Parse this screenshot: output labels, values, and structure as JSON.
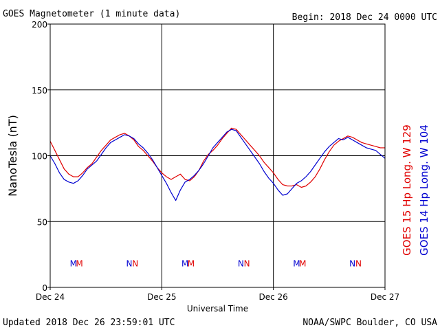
{
  "header": {
    "title": "GOES Magnetometer (1 minute data)",
    "begin": "Begin:  2018 Dec 24 0000 UTC"
  },
  "footer": {
    "updated": "Updated 2018 Dec 26 23:59:01 UTC",
    "credit": "NOAA/SWPC Boulder, CO USA"
  },
  "colors": {
    "goes15": "#e00000",
    "goes14": "#0000d0",
    "grid": "#000000"
  },
  "chart_data": {
    "type": "line",
    "title": "GOES Magnetometer (1 minute data)",
    "xlabel": "Universal Time",
    "ylabel": "NanoTesla (nT)",
    "xlim_hours": [
      0,
      72
    ],
    "ylim": [
      0,
      200
    ],
    "yticks": [
      "0",
      "50",
      "100",
      "150",
      "200"
    ],
    "xticks": [
      {
        "hour": 0,
        "label": "Dec 24"
      },
      {
        "hour": 24,
        "label": "Dec 25"
      },
      {
        "hour": 48,
        "label": "Dec 26"
      },
      {
        "hour": 72,
        "label": "Dec 27"
      }
    ],
    "grid": true,
    "series": [
      {
        "name": "GOES 15 Hp  Long. W 129",
        "color": "#e00000",
        "x_hours": [
          0,
          1,
          2,
          3,
          4,
          5,
          6,
          7,
          8,
          9,
          10,
          11,
          12,
          13,
          14,
          15,
          16,
          17,
          18,
          19,
          20,
          21,
          22,
          23,
          24,
          25,
          26,
          27,
          28,
          29,
          30,
          31,
          32,
          33,
          34,
          35,
          36,
          37,
          38,
          39,
          40,
          41,
          42,
          43,
          44,
          45,
          46,
          47,
          48,
          49,
          50,
          51,
          52,
          53,
          54,
          55,
          56,
          57,
          58,
          59,
          60,
          61,
          62,
          63,
          64,
          65,
          66,
          67,
          68,
          69,
          70,
          71,
          72
        ],
        "values": [
          111,
          104,
          97,
          90,
          86,
          84,
          84,
          87,
          91,
          94,
          99,
          104,
          108,
          112,
          114,
          116,
          117,
          115,
          112,
          107,
          104,
          100,
          96,
          91,
          87,
          84,
          82,
          84,
          86,
          82,
          81,
          84,
          89,
          96,
          101,
          104,
          108,
          113,
          117,
          121,
          120,
          116,
          112,
          108,
          104,
          100,
          95,
          91,
          87,
          82,
          78,
          77,
          77,
          78,
          76,
          77,
          80,
          84,
          90,
          97,
          103,
          108,
          111,
          113,
          115,
          114,
          112,
          110,
          109,
          108,
          107,
          106,
          106
        ]
      },
      {
        "name": "GOES 14 Hp  Long. W 104",
        "color": "#0000d0",
        "x_hours": [
          0,
          1,
          2,
          3,
          4,
          5,
          6,
          7,
          8,
          9,
          10,
          11,
          12,
          13,
          14,
          15,
          16,
          17,
          18,
          19,
          20,
          21,
          22,
          23,
          24,
          25,
          26,
          27,
          28,
          29,
          30,
          31,
          32,
          33,
          34,
          35,
          36,
          37,
          38,
          39,
          40,
          41,
          42,
          43,
          44,
          45,
          46,
          47,
          48,
          49,
          50,
          51,
          52,
          53,
          54,
          55,
          56,
          57,
          58,
          59,
          60,
          61,
          62,
          63,
          64,
          65,
          66,
          67,
          68,
          69,
          70,
          71,
          72
        ],
        "values": [
          100,
          94,
          87,
          82,
          80,
          79,
          81,
          85,
          90,
          93,
          96,
          101,
          106,
          110,
          112,
          114,
          116,
          115,
          113,
          109,
          106,
          102,
          97,
          91,
          85,
          79,
          72,
          66,
          74,
          80,
          82,
          85,
          89,
          94,
          100,
          106,
          110,
          114,
          118,
          120,
          119,
          114,
          109,
          104,
          99,
          94,
          88,
          83,
          79,
          74,
          70,
          71,
          75,
          79,
          81,
          84,
          88,
          93,
          98,
          103,
          107,
          110,
          113,
          112,
          114,
          112,
          110,
          108,
          106,
          105,
          104,
          101,
          98
        ]
      }
    ],
    "markers": [
      {
        "hour": 5.0,
        "text": "M",
        "series": 1
      },
      {
        "hour": 6.3,
        "text": "M",
        "series": 0
      },
      {
        "hour": 17.0,
        "text": "N",
        "series": 1
      },
      {
        "hour": 18.3,
        "text": "N",
        "series": 0
      },
      {
        "hour": 29.0,
        "text": "M",
        "series": 1
      },
      {
        "hour": 30.3,
        "text": "M",
        "series": 0
      },
      {
        "hour": 41.0,
        "text": "N",
        "series": 1
      },
      {
        "hour": 42.3,
        "text": "N",
        "series": 0
      },
      {
        "hour": 53.0,
        "text": "M",
        "series": 1
      },
      {
        "hour": 54.3,
        "text": "M",
        "series": 0
      },
      {
        "hour": 65.0,
        "text": "N",
        "series": 1
      },
      {
        "hour": 66.3,
        "text": "N",
        "series": 0
      }
    ]
  }
}
